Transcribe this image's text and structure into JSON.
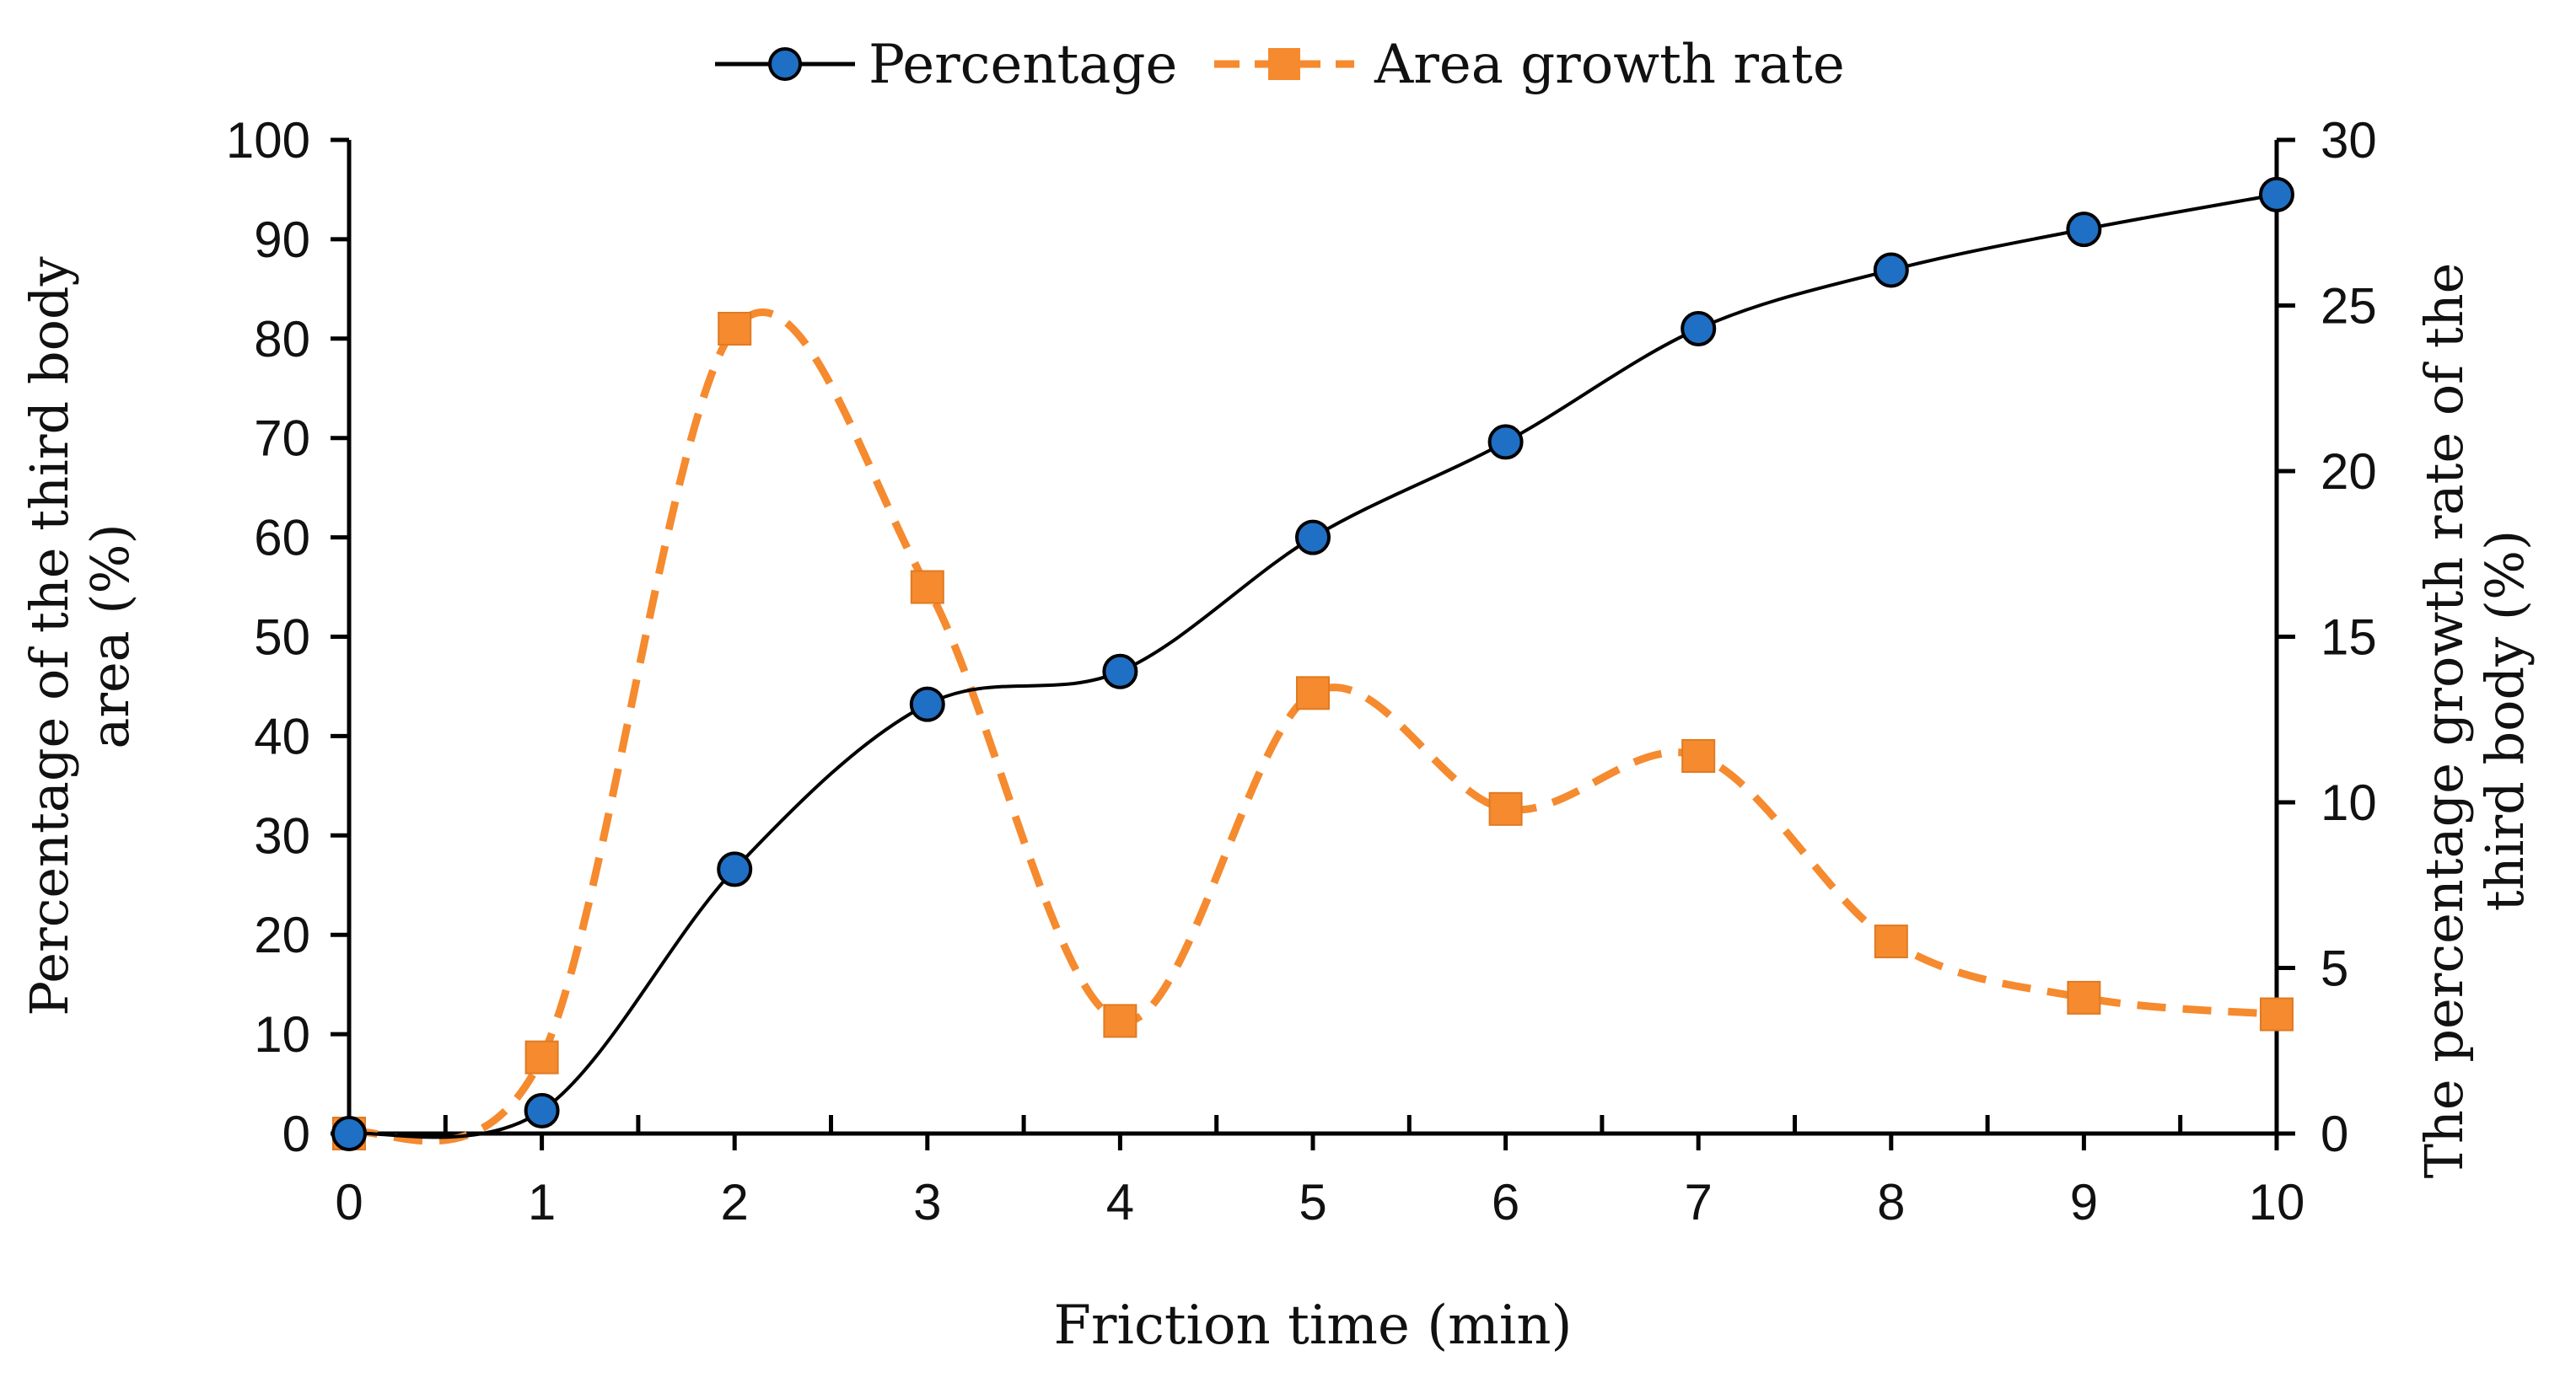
{
  "chart_data": {
    "type": "line",
    "title": "",
    "xlabel": "Friction time (min)",
    "ylabel_left": "Percentage of the third body area (%)",
    "ylabel_right": "The percentage growth rate of the third body (%)",
    "x": [
      0,
      1,
      2,
      3,
      4,
      5,
      6,
      7,
      8,
      9,
      10
    ],
    "xlim": [
      0,
      10
    ],
    "ylim_left": [
      0,
      100
    ],
    "ylim_right": [
      0,
      30
    ],
    "x_ticks": [
      "0",
      "1",
      "2",
      "3",
      "4",
      "5",
      "6",
      "7",
      "8",
      "9",
      "10"
    ],
    "y_ticks_left": [
      "0",
      "10",
      "20",
      "30",
      "40",
      "50",
      "60",
      "70",
      "80",
      "90",
      "100"
    ],
    "y_ticks_right": [
      "0",
      "5",
      "10",
      "15",
      "20",
      "25",
      "30"
    ],
    "legend_position": "top-center",
    "series": [
      {
        "name": "Percentage",
        "axis": "left",
        "values": [
          0,
          2.3,
          26.6,
          43.2,
          46.5,
          60.0,
          69.6,
          81.0,
          86.9,
          91.0,
          94.5
        ],
        "color": "#1f6fc4",
        "line_color": "#000000",
        "marker": "circle",
        "line_style": "solid"
      },
      {
        "name": "Area growth rate",
        "axis": "right",
        "values": [
          0,
          2.3,
          24.3,
          16.5,
          3.4,
          13.3,
          9.8,
          11.4,
          5.8,
          4.1,
          3.6
        ],
        "color": "#f58a2f",
        "marker": "square",
        "line_style": "dashed"
      }
    ]
  },
  "axis_label_lines": {
    "left": [
      "Percentage of the third body",
      "area (%)"
    ],
    "right": [
      "The percentage growth rate of the",
      "third body (%)"
    ]
  }
}
